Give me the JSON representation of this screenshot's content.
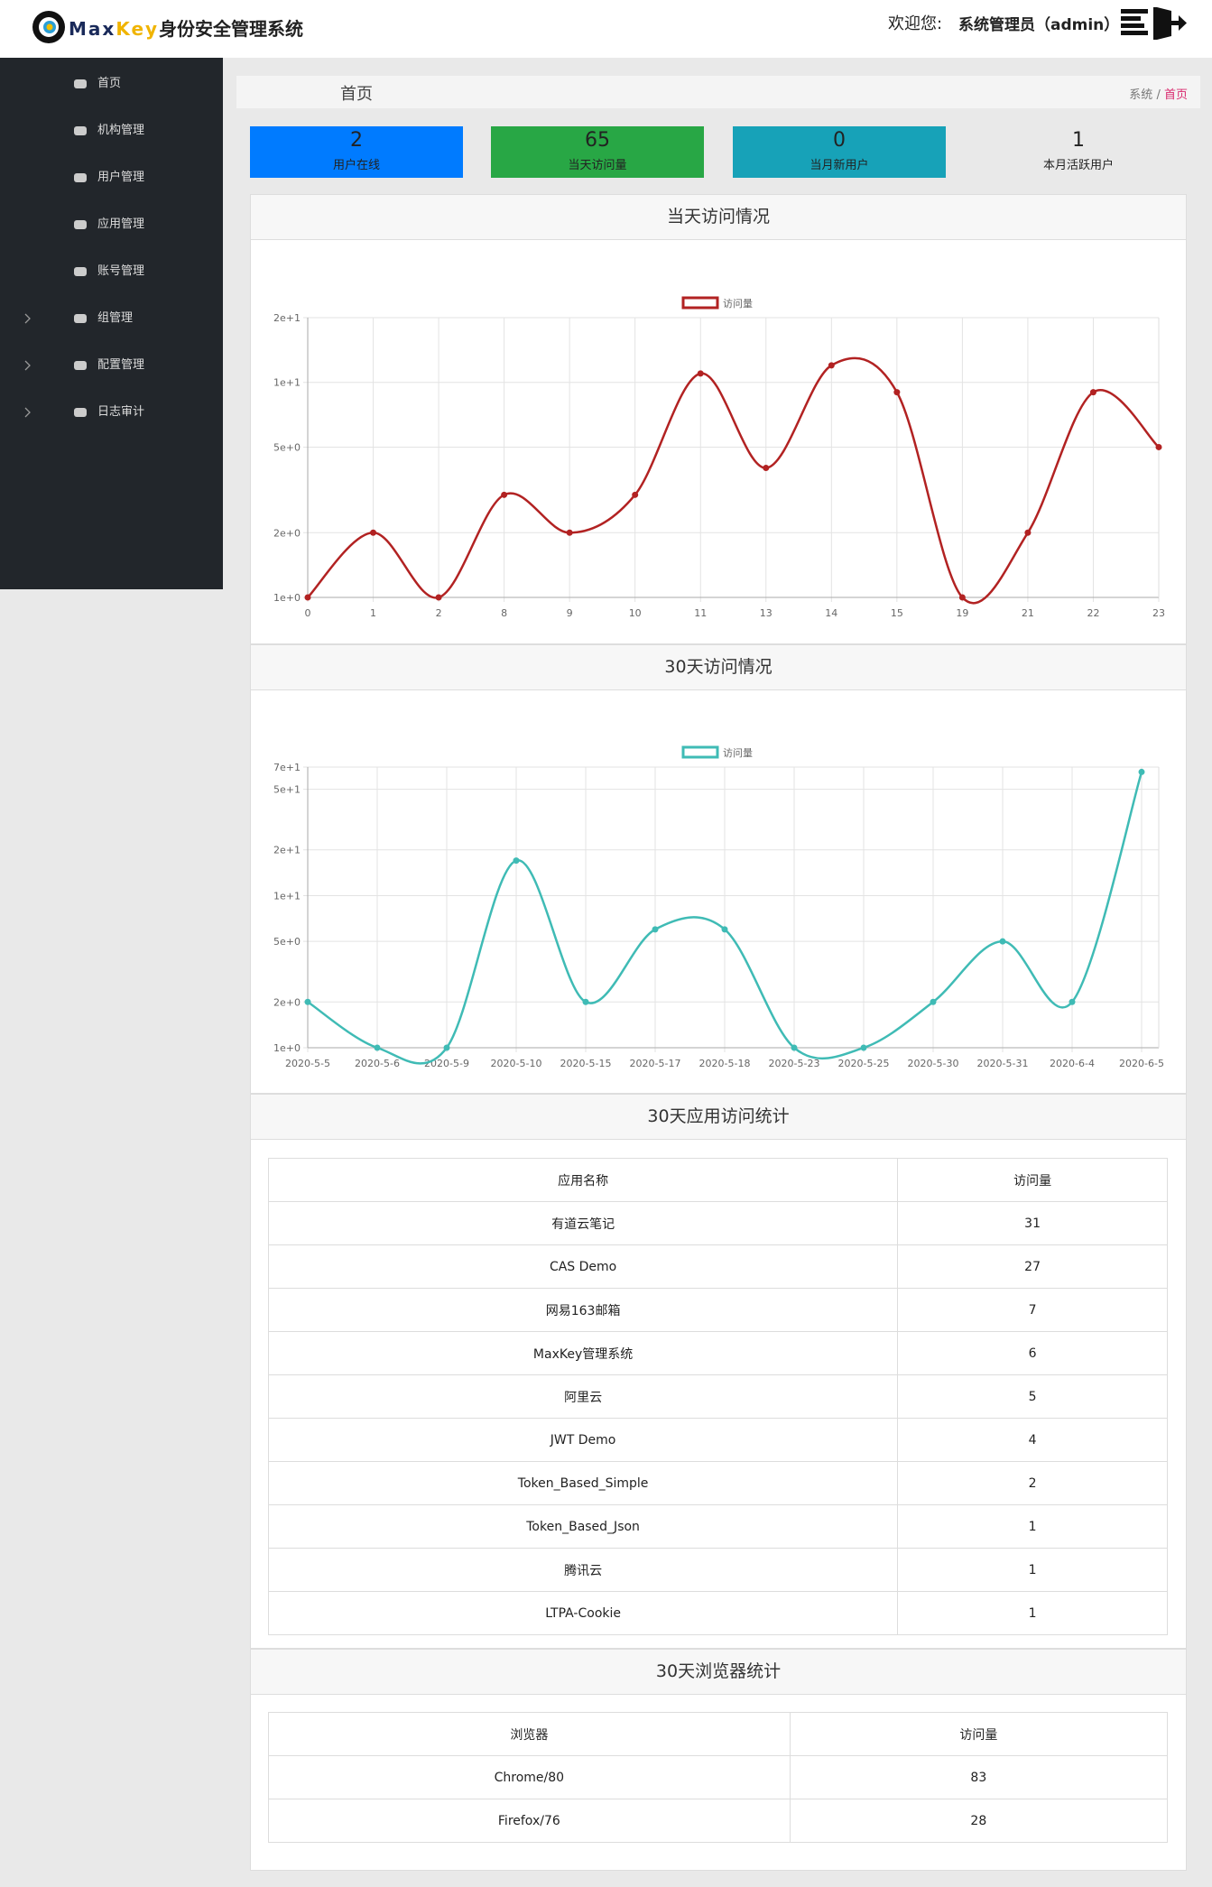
{
  "header": {
    "logo": {
      "part1": "Max",
      "part2": "Key",
      "part3": "身份安全管理系统"
    },
    "welcome": "欢迎您:",
    "user": "系统管理员（admin）"
  },
  "sidebar": {
    "items": [
      "首页",
      "机构管理",
      "用户管理",
      "应用管理",
      "账号管理",
      "组管理",
      "配置管理",
      "日志审计"
    ]
  },
  "breadcrumb": {
    "title": "首页",
    "path": [
      "系统",
      "/",
      "首页"
    ]
  },
  "stats": [
    {
      "value": 2,
      "label": "用户在线",
      "color": "#007bff"
    },
    {
      "value": 65,
      "label": "当天访问量",
      "color": "#28a745"
    },
    {
      "value": 0,
      "label": "当月新用户",
      "color": "#17a2b8"
    },
    {
      "value": 1,
      "label": "本月活跃用户",
      "color": "#e9e9e9"
    }
  ],
  "charts": [
    {
      "type": "line",
      "title": "当天访问情况",
      "log_scale": true,
      "grid": true,
      "categories": [
        "0",
        "1",
        "2",
        "8",
        "9",
        "10",
        "11",
        "13",
        "14",
        "15",
        "19",
        "21",
        "22",
        "23"
      ],
      "series": [
        {
          "name": "访问量",
          "color": "#b22222",
          "values": [
            1,
            2,
            1,
            3,
            2,
            3,
            11,
            4,
            12,
            9,
            1,
            2,
            9,
            5
          ]
        }
      ],
      "ylim": [
        1,
        20
      ],
      "yticks": [
        {
          "value": 1,
          "label": "1e+0"
        },
        {
          "value": 2,
          "label": "2e+0"
        },
        {
          "value": 5,
          "label": "5e+0"
        },
        {
          "value": 10,
          "label": "1e+1"
        },
        {
          "value": 20,
          "label": "2e+1"
        }
      ]
    },
    {
      "type": "line",
      "title": "30天访问情况",
      "log_scale": true,
      "grid": true,
      "categories": [
        "2020-5-5",
        "2020-5-6",
        "2020-5-9",
        "2020-5-10",
        "2020-5-15",
        "2020-5-17",
        "2020-5-18",
        "2020-5-23",
        "2020-5-25",
        "2020-5-30",
        "2020-5-31",
        "2020-6-4",
        "2020-6-5"
      ],
      "series": [
        {
          "name": "访问量",
          "color": "#3fbbb5",
          "values": [
            2,
            1,
            1,
            17,
            2,
            6,
            6,
            1,
            1,
            2,
            5,
            2,
            65
          ]
        }
      ],
      "ylim": [
        1,
        70
      ],
      "yticks": [
        {
          "value": 1,
          "label": "1e+0"
        },
        {
          "value": 2,
          "label": "2e+0"
        },
        {
          "value": 5,
          "label": "5e+0"
        },
        {
          "value": 10,
          "label": "1e+1"
        },
        {
          "value": 20,
          "label": "2e+1"
        },
        {
          "value": 50,
          "label": "5e+1"
        },
        {
          "value": 70,
          "label": "7e+1"
        }
      ]
    }
  ],
  "tables": [
    {
      "title": "30天应用访问统计",
      "columns": [
        "应用名称",
        "访问量"
      ],
      "rows": [
        [
          "有道云笔记",
          31
        ],
        [
          "CAS Demo",
          27
        ],
        [
          "网易163邮箱",
          7
        ],
        [
          "MaxKey管理系统",
          6
        ],
        [
          "阿里云",
          5
        ],
        [
          "JWT Demo",
          4
        ],
        [
          "Token_Based_Simple",
          2
        ],
        [
          "Token_Based_Json",
          1
        ],
        [
          "腾讯云",
          1
        ],
        [
          "LTPA-Cookie",
          1
        ]
      ]
    },
    {
      "title": "30天浏览器统计",
      "columns": [
        "浏览器",
        "访问量"
      ],
      "rows": [
        [
          "Chrome/80",
          83
        ],
        [
          "Firefox/76",
          28
        ]
      ]
    }
  ]
}
